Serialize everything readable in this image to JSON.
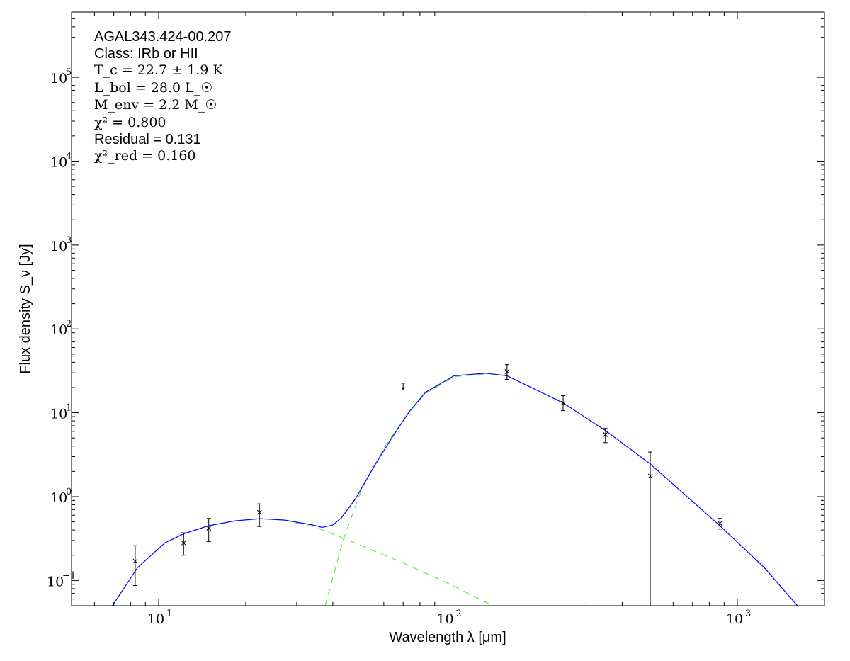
{
  "chart_data": {
    "type": "scatter",
    "title": "",
    "xlabel": "Wavelength λ [μm]",
    "ylabel": "Flux density S_ν [Jy]",
    "xscale": "log",
    "yscale": "log",
    "xlim": [
      5,
      2000
    ],
    "ylim": [
      0.05,
      600000
    ],
    "grid": false,
    "x_ticks": [
      {
        "value": 10,
        "label": "10",
        "exp": "1"
      },
      {
        "value": 100,
        "label": "10",
        "exp": "2"
      },
      {
        "value": 1000,
        "label": "10",
        "exp": "3"
      }
    ],
    "y_ticks": [
      {
        "value": 0.1,
        "label": "10",
        "exp": "−1"
      },
      {
        "value": 1,
        "label": "10",
        "exp": "0"
      },
      {
        "value": 10,
        "label": "10",
        "exp": "1"
      },
      {
        "value": 100,
        "label": "10",
        "exp": "2"
      },
      {
        "value": 1000,
        "label": "10",
        "exp": "3"
      },
      {
        "value": 10000,
        "label": "10",
        "exp": "4"
      },
      {
        "value": 100000,
        "label": "10",
        "exp": "5"
      }
    ],
    "annotations": {
      "source": "AGAL343.424-00.207",
      "class": "Class: IRb or HII",
      "tc": "T_c = 22.7 ± 1.9 K",
      "lbol": "L_bol = 28.0 L_☉",
      "menv": "M_env = 2.2 M_☉",
      "chi2": "χ² = 0.800",
      "residual": "Residual = 0.131",
      "chi2red": "χ²_red = 0.160"
    },
    "colors": {
      "total": "#0000ff",
      "components": "#55ee33",
      "points": "#000000"
    },
    "points": [
      {
        "x": 8.3,
        "y": 0.17,
        "ylo": 0.087,
        "yhi": 0.26
      },
      {
        "x": 12.2,
        "y": 0.28,
        "ylo": 0.2,
        "yhi": 0.37
      },
      {
        "x": 14.9,
        "y": 0.42,
        "ylo": 0.29,
        "yhi": 0.55
      },
      {
        "x": 22.3,
        "y": 0.65,
        "ylo": 0.44,
        "yhi": 0.82
      },
      {
        "x": 160,
        "y": 31,
        "ylo": 25,
        "yhi": 37.5
      },
      {
        "x": 250,
        "y": 13,
        "ylo": 10.6,
        "yhi": 16
      },
      {
        "x": 350,
        "y": 5.5,
        "ylo": 4.4,
        "yhi": 6.5
      },
      {
        "x": 500,
        "y": 1.76,
        "ylo": 0.04,
        "yhi": 3.4
      },
      {
        "x": 870,
        "y": 0.48,
        "ylo": 0.41,
        "yhi": 0.55
      }
    ],
    "upper_limits": [
      {
        "x": 70,
        "y": 20.5
      }
    ],
    "series": [
      {
        "style": "solid",
        "color": "#0000ff",
        "x": [
          6.9,
          8.45,
          10.5,
          12.2,
          14.9,
          18.4,
          22.4,
          27.3,
          34.2,
          36.7,
          40,
          42.8,
          47.9,
          55.6,
          63.3,
          73.6,
          83.7,
          105,
          135,
          160,
          250,
          350,
          500,
          865,
          1240,
          1620
        ],
        "y": [
          0.049,
          0.142,
          0.28,
          0.36,
          0.45,
          0.515,
          0.546,
          0.525,
          0.458,
          0.43,
          0.458,
          0.557,
          0.943,
          2.31,
          4.76,
          10.4,
          17.6,
          27.6,
          29.6,
          27.6,
          13.1,
          6.14,
          2.45,
          0.458,
          0.142,
          0.049
        ]
      },
      {
        "style": "dashed",
        "color": "#55ee33",
        "x": [
          27.3,
          30.5,
          34.2,
          40.4,
          69.7,
          101,
          141
        ],
        "y": [
          0.525,
          0.476,
          0.44,
          0.355,
          0.163,
          0.091,
          0.051
        ]
      },
      {
        "style": "dashed",
        "color": "#55ee33",
        "x": [
          37.6,
          43.5,
          50.6,
          60.9,
          73.6,
          83.7,
          105,
          135
        ],
        "y": [
          0.05,
          0.31,
          1.29,
          4.15,
          10.2,
          17,
          27,
          29
        ]
      }
    ]
  }
}
